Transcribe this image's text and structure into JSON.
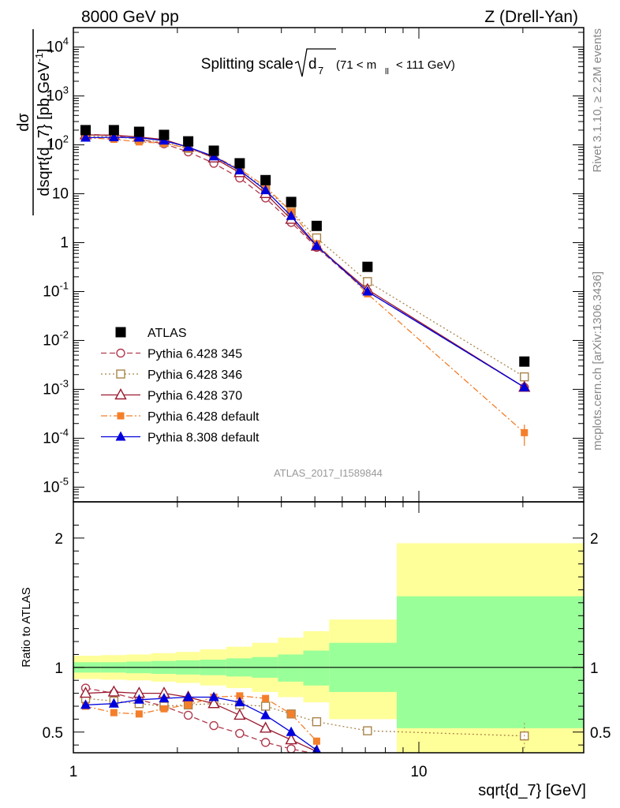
{
  "header": {
    "left": "8000 GeV pp",
    "right": "Z (Drell-Yan)"
  },
  "plot_title": {
    "main": "Splitting scale",
    "radicand": "d",
    "radicand_sub": "7",
    "cut_open": "(71 < m",
    "cut_sub": "ll",
    "cut_close": "< 111 GeV)"
  },
  "analysis_id": "ATLAS_2017_I1589844",
  "side_labels": {
    "rivet": "Rivet 3.1.10, ≥ 2.2M events",
    "mcplots": "mcplots.cern.ch [arXiv:1306.3436]"
  },
  "colors": {
    "ATLAS": "#000000",
    "Pythia 6.428 345": "#b03a4e",
    "Pythia 6.428 346": "#a8844a",
    "Pythia 6.428 370": "#9b1b30",
    "Pythia 6.428 default": "#f47f2b",
    "Pythia 8.308 default": "#0000dd",
    "band_inner": "#99ff99",
    "band_outer": "#ffff99"
  },
  "chart_data": [
    {
      "type": "line",
      "panel": "main",
      "title": "Splitting scale √d7 (71 < m_ll < 111 GeV)",
      "ylabel": "dσ/dsqrt{d_7} [pb,GeV^-1]",
      "xscale": "log",
      "yscale": "log",
      "xlim": [
        1.0,
        30.0
      ],
      "ylim": [
        5e-06,
        25000
      ],
      "x_tick_labels": [
        "1",
        "10"
      ],
      "y_tick_labels": [
        "10^-5",
        "10^-4",
        "10^-3",
        "10^-2",
        "10^-1",
        "1",
        "10",
        "10^2",
        "10^3",
        "10^4"
      ],
      "legend_position": "lower-left",
      "x": [
        1.085,
        1.31,
        1.55,
        1.83,
        2.15,
        2.55,
        3.03,
        3.6,
        4.27,
        5.06,
        7.1,
        20.2
      ],
      "series": [
        {
          "name": "ATLAS",
          "marker": "filled-square",
          "values": [
            200,
            200,
            185,
            160,
            118,
            76,
            42,
            19,
            6.8,
            2.2,
            0.32,
            0.0037
          ]
        },
        {
          "name": "Pythia 6.428 345",
          "marker": "open-circle",
          "style": "dashed",
          "values": [
            165,
            155,
            130,
            105,
            72,
            42,
            21,
            8.2,
            2.6,
            0.8,
            0.1,
            0.0011
          ]
        },
        {
          "name": "Pythia 6.428 346",
          "marker": "open-square",
          "style": "dotted",
          "values": [
            150,
            148,
            130,
            112,
            85,
            55,
            30,
            12.5,
            4.4,
            1.25,
            0.16,
            0.0018
          ]
        },
        {
          "name": "Pythia 6.428 370",
          "marker": "open-triangle",
          "style": "solid",
          "values": [
            160,
            158,
            145,
            128,
            90,
            54,
            27,
            10.1,
            3.0,
            0.85,
            0.11,
            0.0011
          ]
        },
        {
          "name": "Pythia 6.428 default",
          "marker": "filled-small-square",
          "style": "dashdot",
          "values": [
            140,
            130,
            115,
            108,
            85,
            59,
            32,
            14.0,
            4.3,
            0.95,
            0.09,
            0.00013
          ]
        },
        {
          "name": "Pythia 8.308 default",
          "marker": "filled-triangle",
          "style": "solid",
          "values": [
            140,
            143,
            140,
            122,
            90,
            58,
            30,
            11.8,
            3.5,
            0.86,
            0.1,
            0.0011
          ]
        }
      ]
    },
    {
      "type": "line",
      "panel": "ratio",
      "ylabel": "Ratio to ATLAS",
      "xlabel": "sqrt{d_7} [GeV]",
      "xscale": "log",
      "xlim": [
        1.0,
        30.0
      ],
      "ylim": [
        0.34,
        2.28
      ],
      "x_tick_labels": [
        "1",
        "10"
      ],
      "y_tick_labels": [
        "0.5",
        "1",
        "2"
      ],
      "bins": [
        1.0,
        1.2,
        1.42,
        1.68,
        1.98,
        2.33,
        2.77,
        3.29,
        3.91,
        4.63,
        5.5,
        8.63,
        30.0
      ],
      "band_inner_up": [
        1.04,
        1.04,
        1.045,
        1.05,
        1.055,
        1.06,
        1.07,
        1.08,
        1.1,
        1.13,
        1.19,
        1.55
      ],
      "band_inner_down": [
        0.96,
        0.96,
        0.955,
        0.95,
        0.945,
        0.94,
        0.93,
        0.92,
        0.89,
        0.86,
        0.81,
        0.53
      ],
      "band_outer_up": [
        1.09,
        1.095,
        1.1,
        1.11,
        1.12,
        1.14,
        1.16,
        1.19,
        1.23,
        1.28,
        1.37,
        1.96
      ],
      "band_outer_down": [
        0.91,
        0.905,
        0.9,
        0.89,
        0.88,
        0.86,
        0.84,
        0.81,
        0.77,
        0.73,
        0.6,
        0.05
      ],
      "x": [
        1.085,
        1.31,
        1.55,
        1.83,
        2.15,
        2.55,
        3.03,
        3.6,
        4.27,
        5.06,
        7.1,
        20.2
      ],
      "series": [
        {
          "name": "Pythia 6.428 345",
          "values": [
            0.84,
            0.8,
            0.75,
            0.7,
            0.63,
            0.55,
            0.49,
            0.42,
            0.37,
            0.33,
            null,
            null
          ]
        },
        {
          "name": "Pythia 6.428 346",
          "values": [
            0.76,
            0.74,
            0.72,
            0.7,
            0.71,
            0.72,
            0.71,
            0.7,
            0.64,
            0.58,
            0.51,
            0.47
          ]
        },
        {
          "name": "Pythia 6.428 370",
          "values": [
            0.8,
            0.81,
            0.8,
            0.8,
            0.77,
            0.72,
            0.63,
            0.53,
            0.44,
            0.35,
            null,
            null
          ]
        },
        {
          "name": "Pythia 6.428 default",
          "values": [
            0.7,
            0.65,
            0.64,
            0.68,
            0.71,
            0.77,
            0.78,
            0.76,
            0.64,
            0.43,
            null,
            null
          ]
        },
        {
          "name": "Pythia 8.308 default",
          "values": [
            0.71,
            0.72,
            0.75,
            0.76,
            0.77,
            0.77,
            0.73,
            0.63,
            0.5,
            0.36,
            null,
            null
          ]
        }
      ]
    }
  ]
}
